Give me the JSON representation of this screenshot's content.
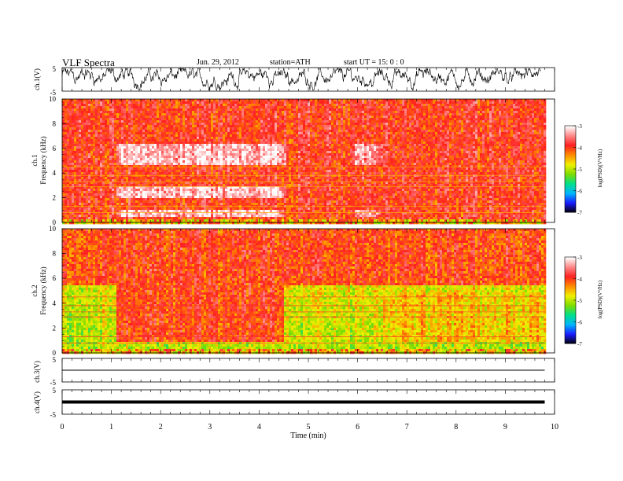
{
  "header": {
    "title": "VLF  Spectra",
    "date": "Jun. 29, 2012",
    "station": "station=ATH",
    "start": "start  UT  =    15: 0  : 0"
  },
  "chart_data": [
    {
      "id": "ch1-waveform",
      "type": "line",
      "ylabel": "ch.1(V)",
      "ylim": [
        -5,
        5
      ],
      "yticks": [
        "5",
        "-5"
      ],
      "xlim": [
        0,
        10
      ]
    },
    {
      "id": "ch1-spectrogram",
      "type": "heatmap",
      "ylabel_channel": "ch.1",
      "ylabel": "Frequency  (kHz)",
      "ylim": [
        0,
        10
      ],
      "yticks": [
        "0",
        "2",
        "4",
        "6",
        "8",
        "10"
      ],
      "xlim": [
        0,
        10
      ],
      "data_end_min": 9.8,
      "base_level": -3.9,
      "bright_segments": [
        {
          "start": 1.1,
          "end": 4.5,
          "level": -3.2,
          "bands_khz": [
            [
              4.8,
              6.5
            ],
            [
              2.0,
              3.0
            ],
            [
              0.5,
              1.2
            ]
          ]
        },
        {
          "start": 4.5,
          "end": 4.6,
          "level": -3.6,
          "bands_khz": [
            [
              4.8,
              6.5
            ]
          ]
        },
        {
          "start": 5.9,
          "end": 6.5,
          "level": -3.4,
          "bands_khz": [
            [
              4.8,
              6.5
            ],
            [
              0.5,
              1.2
            ]
          ]
        }
      ],
      "colorbar": {
        "label": "log(PSD)(V²/Hz)",
        "range": [
          -7,
          -3
        ],
        "ticks": [
          "-3",
          "-4",
          "-5",
          "-6",
          "-7"
        ],
        "colors": [
          "#000000",
          "#1a1aff",
          "#00b4ff",
          "#00e08a",
          "#7ddc00",
          "#f0f000",
          "#ff8c00",
          "#ff2020",
          "#ff8888",
          "#ffffff"
        ]
      }
    },
    {
      "id": "ch2-spectrogram",
      "type": "heatmap",
      "ylabel_channel": "ch.2",
      "ylabel": "Frequency  (kHz)",
      "ylim": [
        0,
        10
      ],
      "yticks": [
        "0",
        "2",
        "4",
        "6",
        "8",
        "10"
      ],
      "xlim": [
        0,
        10
      ],
      "data_end_min": 9.8,
      "base_level_high": -4.0,
      "base_level_low": -5.0,
      "bright_segments": [
        {
          "start": 1.1,
          "end": 4.5,
          "level": -4.0,
          "bands_khz": [
            [
              1.0,
              6.0
            ]
          ]
        },
        {
          "start": 6.5,
          "end": 9.8,
          "level": -4.6,
          "bands_khz": [
            [
              1.0,
              5.0
            ]
          ]
        }
      ],
      "colorbar": {
        "label": "log(PSD)(V²/Hz)",
        "range": [
          -7,
          -3
        ],
        "ticks": [
          "-3",
          "-4",
          "-5",
          "-6",
          "-7"
        ],
        "colors": [
          "#000000",
          "#1a1aff",
          "#00b4ff",
          "#00e08a",
          "#7ddc00",
          "#f0f000",
          "#ff8c00",
          "#ff2020",
          "#ff8888",
          "#ffffff"
        ]
      }
    },
    {
      "id": "ch3-waveform",
      "type": "line",
      "ylabel": "ch.3(V)",
      "ylim": [
        -5,
        5
      ],
      "yticks": [
        "5",
        "-5"
      ],
      "xlim": [
        0,
        10
      ],
      "level": 0
    },
    {
      "id": "ch4-waveform",
      "type": "line",
      "ylabel": "ch.4(V)",
      "ylim": [
        -5,
        5
      ],
      "yticks": [
        "5",
        "-5"
      ],
      "xlim": [
        0,
        10
      ],
      "level": 0
    }
  ],
  "xaxis": {
    "label": "Time  (min)",
    "ticks": [
      "0",
      "1",
      "2",
      "3",
      "4",
      "5",
      "6",
      "7",
      "8",
      "9",
      "10"
    ]
  }
}
